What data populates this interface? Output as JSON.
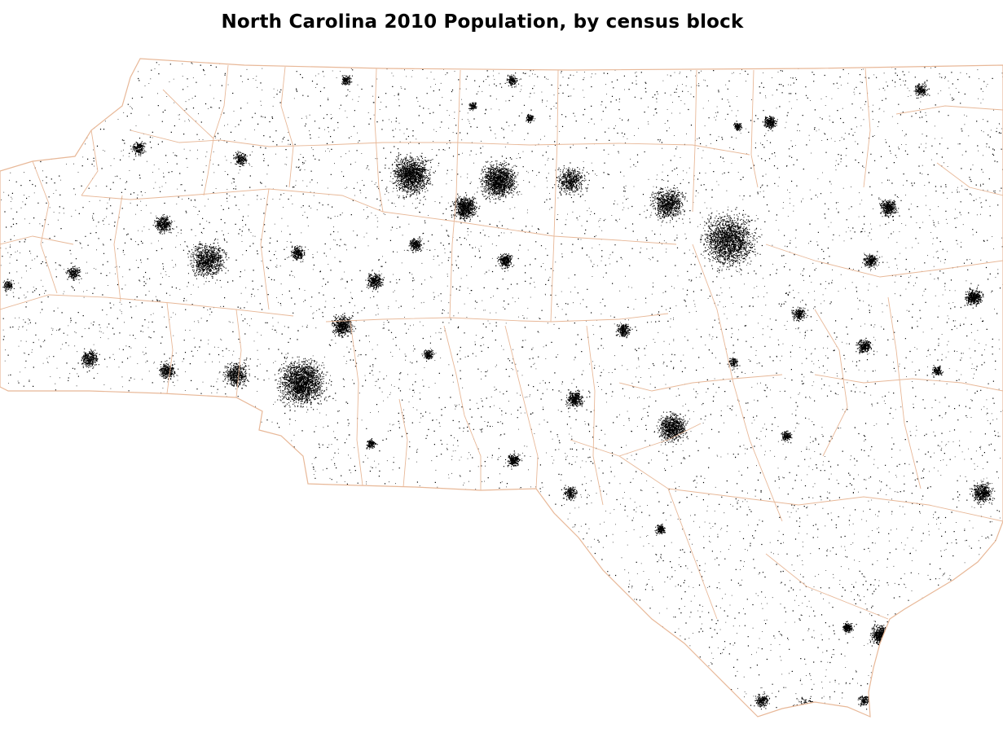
{
  "title": "North Carolina 2010 Population, by census block",
  "colors": {
    "background": "#ffffff",
    "dots": "#000000",
    "county_borders": "#e8b898",
    "title": "#000000"
  },
  "legend": null
}
